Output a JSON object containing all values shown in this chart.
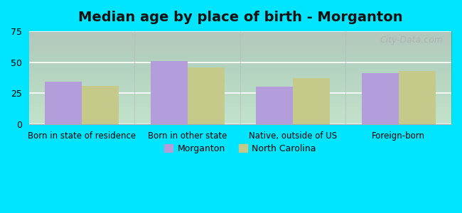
{
  "title": "Median age by place of birth - Morganton",
  "categories": [
    "Born in state of residence",
    "Born in other state",
    "Native, outside of US",
    "Foreign-born"
  ],
  "morganton_values": [
    34,
    51,
    30,
    41
  ],
  "nc_values": [
    31,
    46,
    37,
    43
  ],
  "morganton_color": "#b39ddb",
  "nc_color": "#c5c98a",
  "ylim": [
    0,
    75
  ],
  "yticks": [
    0,
    25,
    50,
    75
  ],
  "bar_width": 0.35,
  "legend_labels": [
    "Morganton",
    "North Carolina"
  ],
  "plot_bg_top": "#ffffff",
  "plot_bg_bottom": "#dff5df",
  "outer_background": "#00e5ff",
  "watermark": "City-Data.com"
}
